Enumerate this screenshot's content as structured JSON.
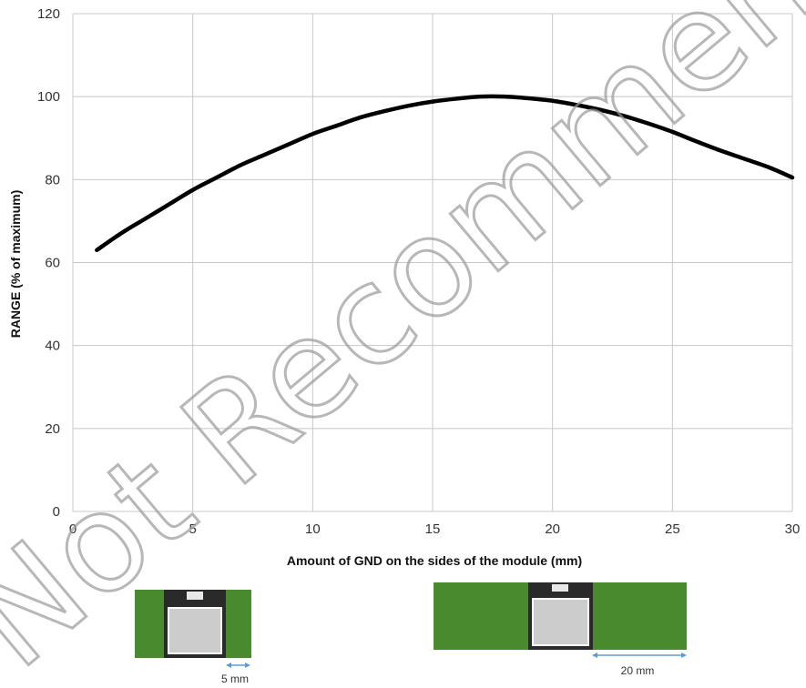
{
  "chart_data": {
    "type": "line",
    "title": "",
    "xlabel": "Amount of GND on the sides of the module (mm)",
    "ylabel": "RANGE (% of maximum)",
    "xlim": [
      0,
      30
    ],
    "ylim": [
      0,
      120
    ],
    "xticks": [
      0,
      5,
      10,
      15,
      20,
      25,
      30
    ],
    "yticks": [
      0,
      20,
      40,
      60,
      80,
      100,
      120
    ],
    "grid": true,
    "series": [
      {
        "color": "#000000",
        "x": [
          1,
          2,
          3,
          4,
          5,
          6,
          7,
          8,
          9,
          10,
          11,
          12,
          13,
          14,
          15,
          16,
          17,
          18,
          19,
          20,
          21,
          22,
          23,
          24,
          25,
          26,
          27,
          28,
          29,
          30
        ],
        "y": [
          63,
          67,
          70.5,
          74,
          77.5,
          80.5,
          83.5,
          86,
          88.5,
          91,
          93,
          95,
          96.5,
          97.8,
          98.8,
          99.5,
          100,
          100,
          99.6,
          99,
          98,
          96.8,
          95.3,
          93.5,
          91.5,
          89.2,
          87,
          85,
          83,
          80.5
        ]
      }
    ]
  },
  "annotations": {
    "watermark_text": "Not Recommended for New",
    "left_dimension": "5 mm",
    "right_dimension": "20 mm"
  },
  "colors": {
    "board_green": "#4a8a2e",
    "module_dark": "#2a2a2a",
    "module_inner": "#cccccc",
    "arrow_blue": "#5b9bd5",
    "grid": "#c8c8c8"
  }
}
